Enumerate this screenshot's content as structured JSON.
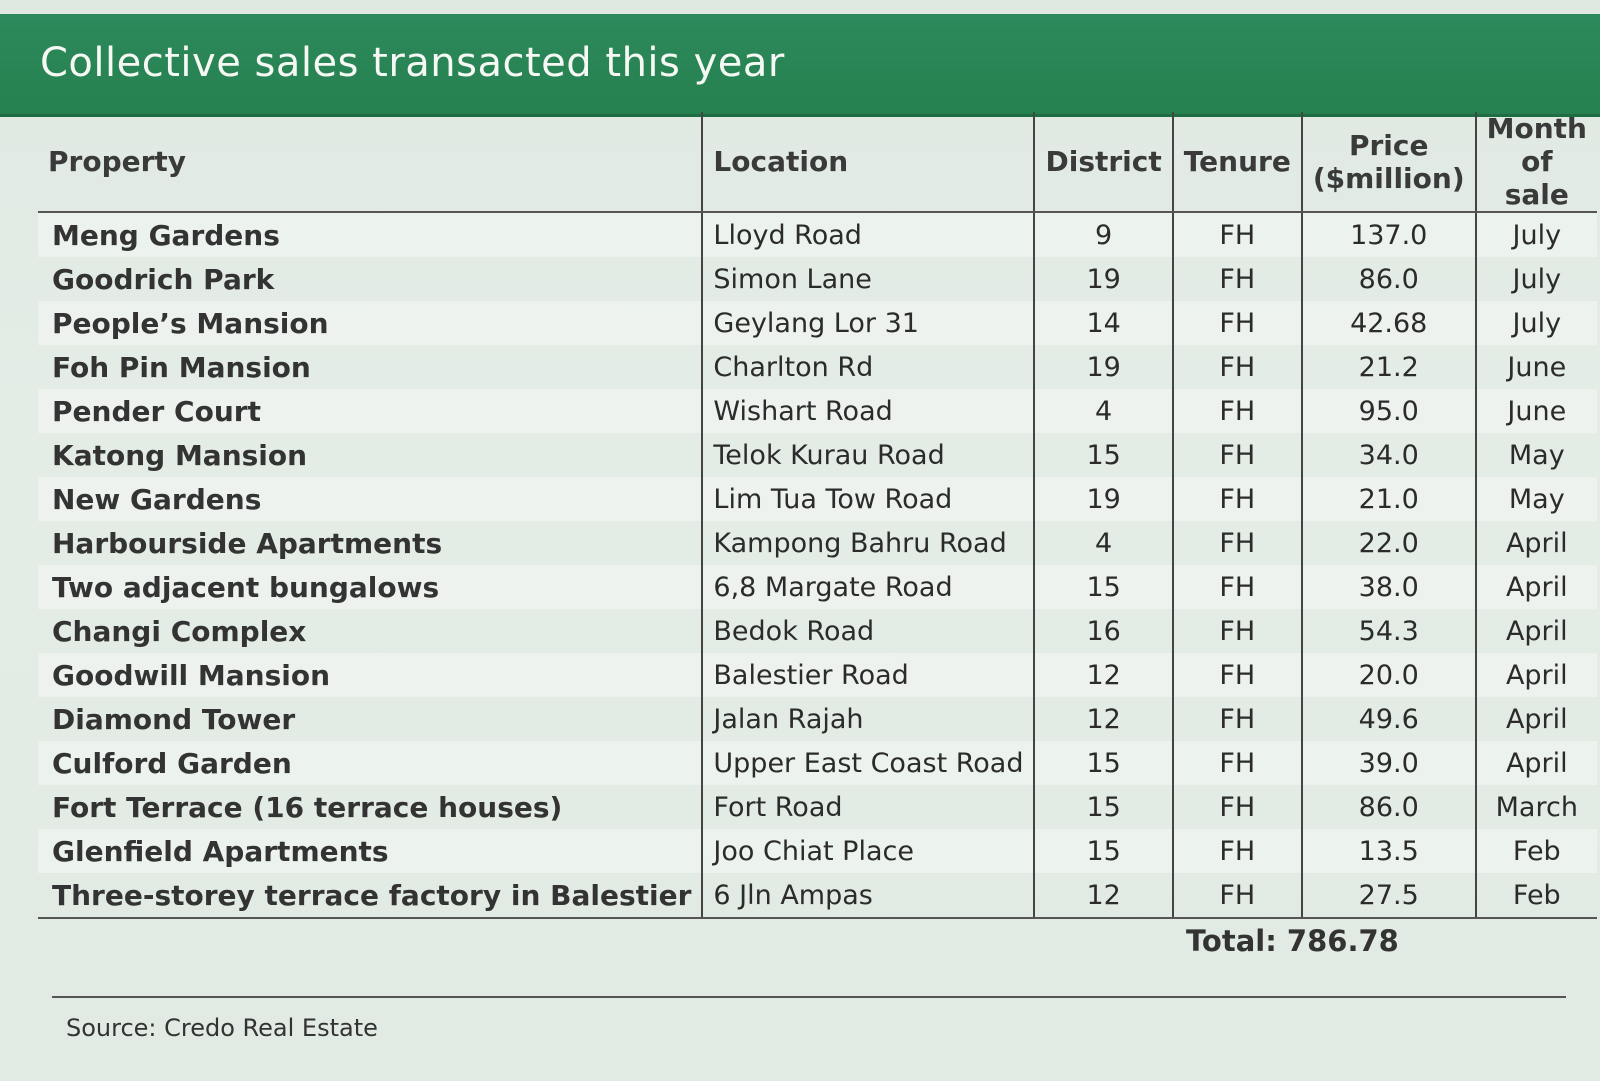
{
  "title": "Collective sales transacted this year",
  "columns": {
    "property": "Property",
    "location": "Location",
    "district": "District",
    "tenure": "Tenure",
    "price_line1": "Price",
    "price_line2": "($million)",
    "month_line1": "Month",
    "month_line2": "of sale"
  },
  "rows": [
    {
      "property": "Meng Gardens",
      "location": "Lloyd Road",
      "district": "9",
      "tenure": "FH",
      "price": "137.0",
      "month": "July"
    },
    {
      "property": "Goodrich Park",
      "location": "Simon Lane",
      "district": "19",
      "tenure": "FH",
      "price": "86.0",
      "month": "July"
    },
    {
      "property": "People’s Mansion",
      "location": "Geylang Lor 31",
      "district": "14",
      "tenure": "FH",
      "price": "42.68",
      "month": "July"
    },
    {
      "property": "Foh Pin Mansion",
      "location": "Charlton Rd",
      "district": "19",
      "tenure": "FH",
      "price": "21.2",
      "month": "June"
    },
    {
      "property": "Pender Court",
      "location": "Wishart Road",
      "district": "4",
      "tenure": "FH",
      "price": "95.0",
      "month": "June"
    },
    {
      "property": "Katong Mansion",
      "location": "Telok Kurau Road",
      "district": "15",
      "tenure": "FH",
      "price": "34.0",
      "month": "May"
    },
    {
      "property": "New Gardens",
      "location": "Lim Tua Tow Road",
      "district": "19",
      "tenure": "FH",
      "price": "21.0",
      "month": "May"
    },
    {
      "property": "Harbourside Apartments",
      "location": "Kampong Bahru Road",
      "district": "4",
      "tenure": "FH",
      "price": "22.0",
      "month": "April"
    },
    {
      "property": "Two adjacent bungalows",
      "location": "6,8 Margate Road",
      "district": "15",
      "tenure": "FH",
      "price": "38.0",
      "month": "April"
    },
    {
      "property": "Changi Complex",
      "location": "Bedok Road",
      "district": "16",
      "tenure": "FH",
      "price": "54.3",
      "month": "April"
    },
    {
      "property": "Goodwill Mansion",
      "location": "Balestier Road",
      "district": "12",
      "tenure": "FH",
      "price": "20.0",
      "month": "April"
    },
    {
      "property": "Diamond Tower",
      "location": "Jalan Rajah",
      "district": "12",
      "tenure": "FH",
      "price": "49.6",
      "month": "April"
    },
    {
      "property": "Culford Garden",
      "location": "Upper East Coast Road",
      "district": "15",
      "tenure": "FH",
      "price": "39.0",
      "month": "April"
    },
    {
      "property": "Fort Terrace (16 terrace houses)",
      "location": "Fort Road",
      "district": "15",
      "tenure": "FH",
      "price": "86.0",
      "month": "March"
    },
    {
      "property": "Glenfield Apartments",
      "location": "Joo Chiat Place",
      "district": "15",
      "tenure": "FH",
      "price": "13.5",
      "month": "Feb"
    },
    {
      "property": "Three-storey terrace factory in Balestier",
      "location": "6 Jln Ampas",
      "district": "12",
      "tenure": "FH",
      "price": "27.5",
      "month": "Feb"
    }
  ],
  "total": "Total: 786.78",
  "source": "Source: Credo Real Estate"
}
